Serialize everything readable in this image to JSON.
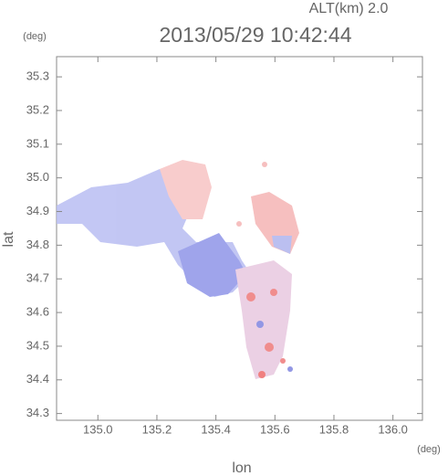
{
  "chart_data": {
    "type": "map",
    "title": "2013/05/29 10:42:44",
    "annotation": "ALT(km) 2.0",
    "x_label": "lon",
    "y_label": "lat",
    "x_unit": "(deg)",
    "y_unit": "(deg)",
    "xlim": [
      134.86,
      136.1
    ],
    "ylim": [
      34.28,
      35.36
    ],
    "xticks": [
      {
        "value": 135,
        "label": "135.0"
      },
      135.2,
      135.4,
      135.6,
      135.8,
      {
        "value": 136,
        "label": "136.0"
      }
    ],
    "yticks": [
      34.3,
      34.4,
      34.5,
      34.6,
      34.7,
      34.8,
      34.9,
      {
        "value": 35,
        "label": "35.0"
      },
      35.1,
      35.2,
      35.3
    ]
  }
}
